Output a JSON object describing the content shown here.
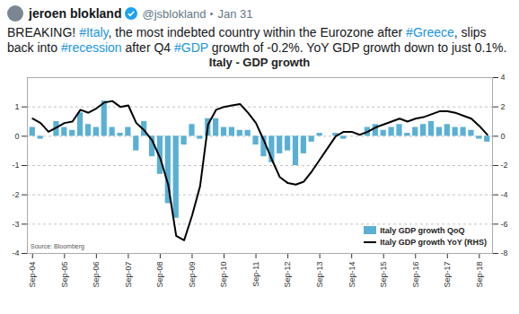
{
  "tweet": {
    "author": "jeroen blokland",
    "handle": "@jsblokland",
    "date": "Jan 31",
    "text": "BREAKING! #Italy, the most indebted country within the Eurozone after #Greece, slips back into #recession after Q4 #GDP growth of -0.2%. YoY GDP growth down to just 0.1%."
  },
  "chart_data": {
    "type": "bar",
    "title": "Italy - GDP growth",
    "annotations": [
      "Source: Bloomberg"
    ],
    "categories": [
      "Sep-04",
      null,
      null,
      null,
      "Sep-05",
      null,
      null,
      null,
      "Sep-06",
      null,
      null,
      null,
      "Sep-07",
      null,
      null,
      null,
      "Sep-08",
      null,
      null,
      null,
      "Sep-09",
      null,
      null,
      null,
      "Sep-10",
      null,
      null,
      null,
      "Sep-11",
      null,
      null,
      null,
      "Sep-12",
      null,
      null,
      null,
      "Sep-13",
      null,
      null,
      null,
      "Sep-14",
      null,
      null,
      null,
      "Sep-15",
      null,
      null,
      null,
      "Sep-16",
      null,
      null,
      null,
      "Sep-17",
      null,
      null,
      null,
      "Sep-18",
      null
    ],
    "series": [
      {
        "name": "Italy GDP growth QoQ",
        "type": "bar",
        "color": "#5ab0d4",
        "values": [
          0.3,
          -0.1,
          0.0,
          0.5,
          0.3,
          0.2,
          0.8,
          0.4,
          0.3,
          1.2,
          0.3,
          0.1,
          0.3,
          -0.5,
          0.5,
          -0.7,
          -1.3,
          -2.3,
          -2.8,
          -0.3,
          0.4,
          -0.1,
          0.6,
          0.6,
          0.3,
          0.3,
          0.2,
          0.2,
          -0.3,
          -0.7,
          -0.9,
          -0.6,
          -0.5,
          -1.0,
          -0.6,
          -0.2,
          0.1,
          0.0,
          0.1,
          -0.1,
          0.0,
          0.0,
          0.3,
          0.4,
          0.2,
          0.3,
          0.4,
          0.1,
          0.3,
          0.4,
          0.5,
          0.3,
          0.4,
          0.3,
          0.3,
          0.2,
          -0.1,
          -0.2
        ]
      },
      {
        "name": "Italy GDP growth YoY (RHS)",
        "type": "line",
        "color": "#000000",
        "axis": "y2",
        "values": [
          1.2,
          0.9,
          0.3,
          0.6,
          0.9,
          1.0,
          1.8,
          1.6,
          1.9,
          2.3,
          2.4,
          2.0,
          2.1,
          0.9,
          0.4,
          -0.3,
          -1.5,
          -3.3,
          -6.8,
          -7.1,
          -5.4,
          -3.4,
          0.8,
          1.8,
          2.0,
          2.1,
          2.2,
          1.6,
          0.9,
          -0.3,
          -1.6,
          -2.8,
          -3.2,
          -3.3,
          -3.1,
          -2.4,
          -1.6,
          -0.8,
          0.0,
          0.3,
          0.3,
          0.1,
          0.3,
          0.6,
          0.8,
          1.0,
          1.2,
          1.0,
          1.2,
          1.3,
          1.5,
          1.7,
          1.7,
          1.6,
          1.4,
          1.2,
          0.7,
          0.1
        ]
      }
    ],
    "ylim": [
      -4,
      2
    ],
    "yticks": [
      -4,
      -3,
      -2,
      -1,
      0,
      1
    ],
    "y2lim": [
      -8,
      4
    ],
    "y2ticks": [
      -8,
      -6,
      -4,
      -2,
      0,
      2,
      4
    ],
    "grid": true,
    "legend": "bottom-right"
  }
}
